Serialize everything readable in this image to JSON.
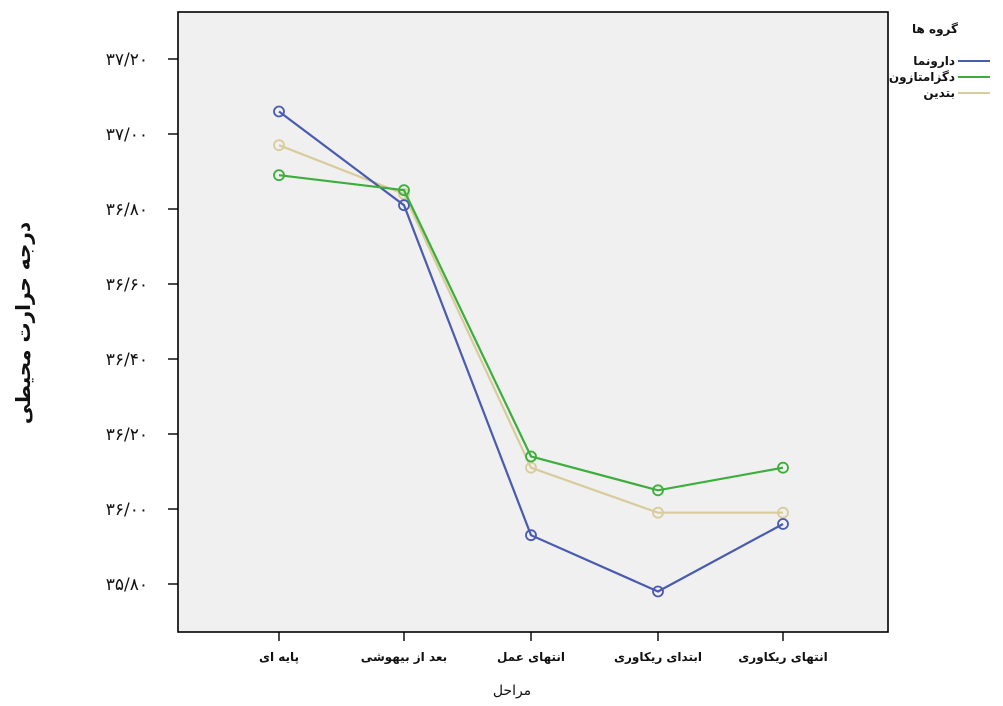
{
  "chart_data": {
    "type": "line",
    "xlabel": "مراحل",
    "ylabel": "درجه حرارت محیطی",
    "categories": [
      "پایه ای",
      "بعد از بیهوشی",
      "انتهای عمل",
      "ابتدای ریکاوری",
      "انتهای ریکاوری"
    ],
    "ylim": [
      35.7,
      37.35
    ],
    "yticks": [
      35.8,
      36.0,
      36.2,
      36.4,
      36.6,
      36.8,
      37.0,
      37.2
    ],
    "ytick_labels": [
      "۳۵/۸۰",
      "۳۶/۰۰",
      "۳۶/۲۰",
      "۳۶/۴۰",
      "۳۶/۶۰",
      "۳۶/۸۰",
      "۳۷/۰۰",
      "۳۷/۲۰"
    ],
    "grid": false,
    "legend_title": "گروه ها",
    "legend_position": "top-right",
    "series": [
      {
        "name": "دارونما",
        "color": "#4a5bb0",
        "values": [
          37.06,
          36.81,
          35.93,
          35.78,
          35.96
        ]
      },
      {
        "name": "دگزامتازون",
        "color": "#3cae3c",
        "values": [
          36.89,
          36.85,
          36.14,
          36.05,
          36.11
        ]
      },
      {
        "name": "بتدین",
        "color": "#d8cc9c",
        "values": [
          36.97,
          36.84,
          36.11,
          35.99,
          35.99
        ]
      }
    ]
  }
}
